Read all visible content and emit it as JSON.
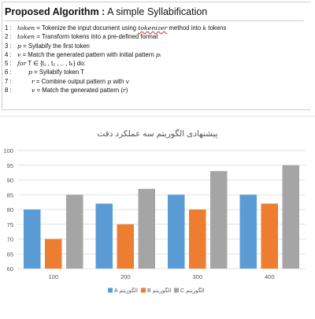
{
  "algorithm": {
    "title_bold": "Proposed Algorithm :",
    "title_rest": " A simple Syllabification",
    "lines": [
      {
        "n": "1 :",
        "a": "token",
        "b": " = Tokenize the input document using ",
        "c": "tokenizer",
        "d": " method into ",
        "e": "k",
        "f": " tokens"
      },
      {
        "n": "2 :",
        "a": "token",
        "b": " = Transform tokens into a pre-defined format"
      },
      {
        "n": "3 :",
        "a": "p",
        "b": " = Syllabify the first token"
      },
      {
        "n": "4 :",
        "a": "v",
        "b": " = Match the generated pattern with initial pattern ",
        "c": "pᵢ"
      },
      {
        "n": "5 :",
        "a": "for",
        "b": " T ∈ {t₁ , t₂ , .. , tₖ} do:"
      },
      {
        "n": "6 :",
        "a": "p",
        "b": " = Syllabify token T"
      },
      {
        "n": "7 :",
        "a": "r",
        "b": " = Combine output pattern ",
        "c": "p",
        "d": " with ",
        "e": "v"
      },
      {
        "n": "8 :",
        "a": "v",
        "b": " = Match the generated pattern (",
        "c": "r",
        "d": ")"
      }
    ]
  },
  "chart_data": {
    "type": "bar",
    "title": "پیشنهادی الگوریتم سه عملکرد دقت",
    "categories": [
      "100",
      "200",
      "300",
      "400"
    ],
    "series": [
      {
        "name": "A الگوریتم",
        "color": "#5b9bd5",
        "values": [
          80,
          82,
          85,
          85
        ]
      },
      {
        "name": "B الگوریتم",
        "color": "#ed7d31",
        "values": [
          70,
          75,
          80,
          82
        ]
      },
      {
        "name": "C الگوریتم",
        "color": "#a5a5a5",
        "values": [
          85,
          87,
          93,
          95
        ]
      }
    ],
    "ylim": [
      60,
      100
    ],
    "yticks": [
      60,
      65,
      70,
      75,
      80,
      85,
      90,
      95,
      100
    ],
    "grid": true,
    "legend": "bottom"
  }
}
